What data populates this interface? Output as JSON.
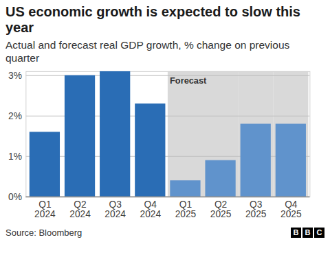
{
  "chart_data": {
    "type": "bar",
    "title": "US economic growth is expected to slow this year",
    "subtitle": "Actual and forecast real GDP growth, % change on previous quarter",
    "categories": [
      "Q1 2024",
      "Q2 2024",
      "Q3 2024",
      "Q4 2024",
      "Q1 2025",
      "Q2 2025",
      "Q3 2025",
      "Q4 2025"
    ],
    "values": [
      1.6,
      3.0,
      3.1,
      2.3,
      0.4,
      0.9,
      1.8,
      1.8
    ],
    "colors": [
      "#2a6db5",
      "#2a6db5",
      "#2a6db5",
      "#2a6db5",
      "#6093cc",
      "#6093cc",
      "#6093cc",
      "#6093cc"
    ],
    "ylim": [
      0,
      3.1
    ],
    "yticks": [
      {
        "value": 0,
        "label": "0%"
      },
      {
        "value": 1,
        "label": "1%"
      },
      {
        "value": 2,
        "label": "2%"
      },
      {
        "value": 3,
        "label": "3%"
      }
    ],
    "grid": true,
    "annotations": [
      {
        "label": "Forecast",
        "start": "Q1 2025",
        "end": "Q4 2025"
      }
    ],
    "source": "Source: Bloomberg",
    "logo": "BBC"
  }
}
